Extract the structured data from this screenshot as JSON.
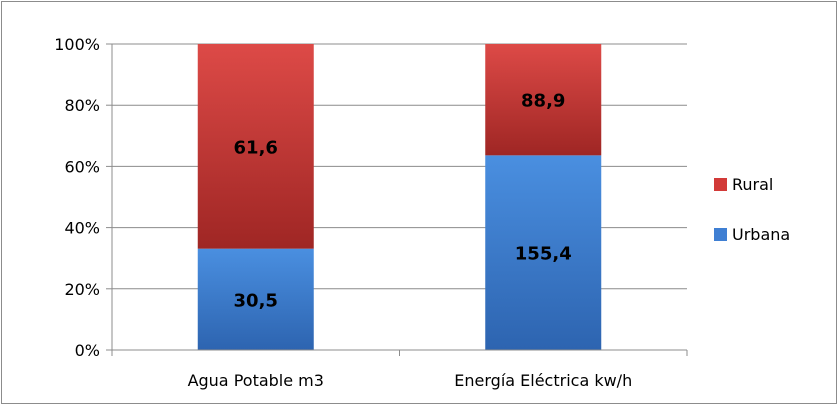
{
  "chart_data": {
    "type": "bar",
    "stacked": "percent",
    "categories": [
      "Agua Potable m3",
      "Energía Eléctrica kw/h"
    ],
    "series": [
      {
        "name": "Urbana",
        "values": [
          30.5,
          155.4
        ],
        "labels": [
          "30,5",
          "155,4"
        ],
        "color": "#3f7fd3"
      },
      {
        "name": "Rural",
        "values": [
          61.6,
          88.9
        ],
        "labels": [
          "61,6",
          "88,9"
        ],
        "color": "#d23a38"
      }
    ],
    "ylim": [
      0,
      100
    ],
    "yticks": [
      "0%",
      "20%",
      "40%",
      "60%",
      "80%",
      "100%"
    ],
    "grid": true,
    "legend_position": "right",
    "legend_order": [
      "Rural",
      "Urbana"
    ]
  }
}
